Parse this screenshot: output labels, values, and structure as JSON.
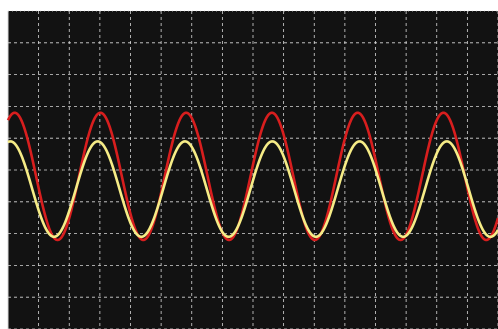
{
  "chart_data": {
    "type": "line",
    "title": "",
    "xlabel": "",
    "ylabel": "",
    "grid": true,
    "grid_divisions": {
      "x": 16,
      "y": 10
    },
    "xlim": [
      0,
      16
    ],
    "ylim": [
      -5,
      5
    ],
    "background_color": "#121212",
    "grid_color": "#d8d8d8",
    "series": [
      {
        "color": "#d81e1e",
        "waveform": "sine",
        "amplitude": 2.0,
        "offset": -0.2,
        "period": 2.8,
        "phase_deg": 62
      },
      {
        "color": "#f6ec86",
        "waveform": "sine",
        "amplitude": 1.5,
        "offset": -0.6,
        "period": 2.85,
        "phase_deg": 80
      }
    ]
  }
}
